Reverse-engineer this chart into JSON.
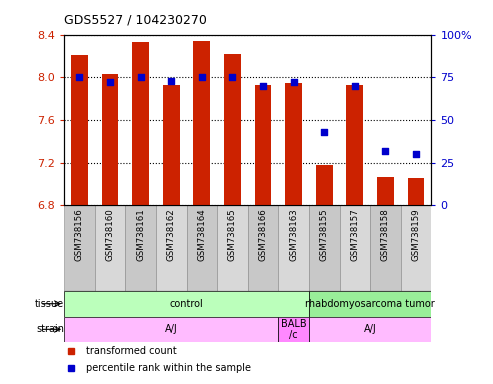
{
  "title": "GDS5527 / 104230270",
  "samples": [
    "GSM738156",
    "GSM738160",
    "GSM738161",
    "GSM738162",
    "GSM738164",
    "GSM738165",
    "GSM738166",
    "GSM738163",
    "GSM738155",
    "GSM738157",
    "GSM738158",
    "GSM738159"
  ],
  "red_values": [
    8.21,
    8.03,
    8.33,
    7.93,
    8.34,
    8.22,
    7.93,
    7.95,
    7.18,
    7.93,
    7.07,
    7.06
  ],
  "blue_values": [
    75,
    72,
    75,
    73,
    75,
    75,
    70,
    72,
    43,
    70,
    32,
    30
  ],
  "ylim_left": [
    6.8,
    8.4
  ],
  "ylim_right": [
    0,
    100
  ],
  "yticks_left": [
    6.8,
    7.2,
    7.6,
    8.0,
    8.4
  ],
  "yticks_right": [
    0,
    25,
    50,
    75,
    100
  ],
  "bar_color": "#cc2200",
  "dot_color": "#0000cc",
  "bar_bottom": 6.8,
  "tissue_groups": [
    {
      "label": "control",
      "start": 0,
      "end": 8,
      "color": "#bbffbb"
    },
    {
      "label": "rhabdomyosarcoma tumor",
      "start": 8,
      "end": 12,
      "color": "#99ee99"
    }
  ],
  "strain_groups": [
    {
      "label": "A/J",
      "start": 0,
      "end": 7,
      "color": "#ffbbff"
    },
    {
      "label": "BALB\n/c",
      "start": 7,
      "end": 8,
      "color": "#ff88ff"
    },
    {
      "label": "A/J",
      "start": 8,
      "end": 12,
      "color": "#ffbbff"
    }
  ],
  "legend_items": [
    {
      "label": "transformed count",
      "color": "#cc2200"
    },
    {
      "label": "percentile rank within the sample",
      "color": "#0000cc"
    }
  ],
  "col_bg_even": "#c8c8c8",
  "col_bg_odd": "#d8d8d8",
  "tick_label_color_left": "#cc2200",
  "tick_label_color_right": "#0000cc"
}
